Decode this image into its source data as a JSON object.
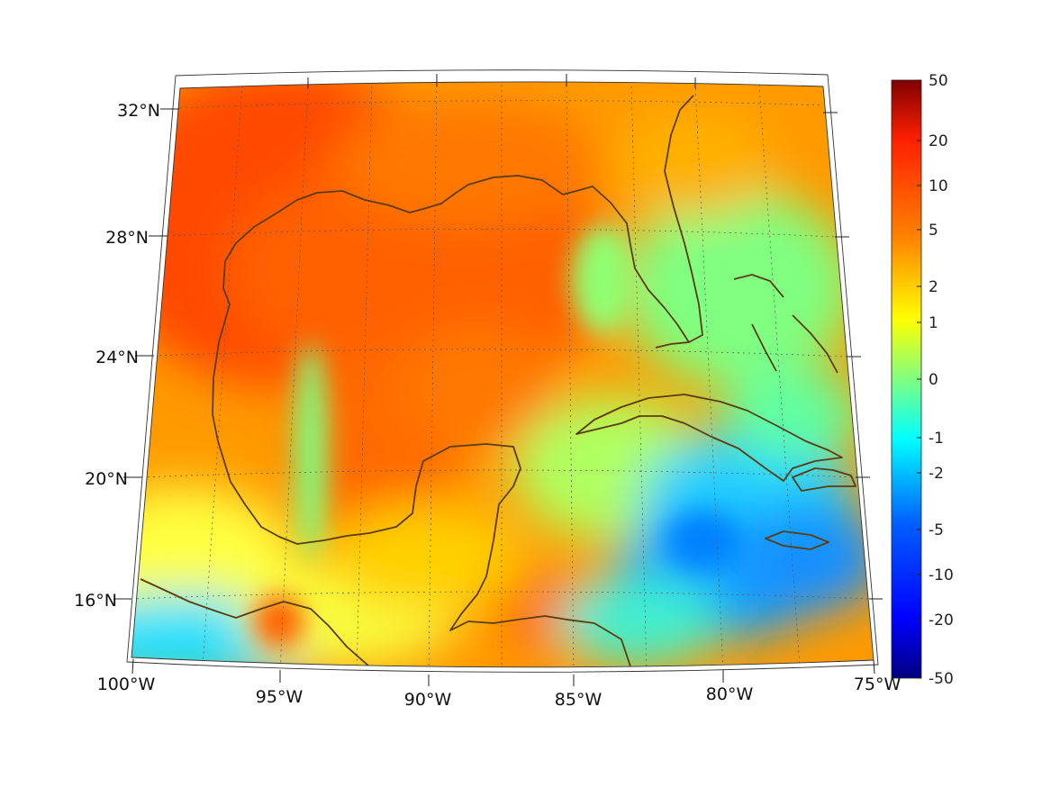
{
  "map": {
    "region": "Gulf of Mexico and Caribbean",
    "projection": "conic",
    "lon_labels": [
      "100°W",
      "95°W",
      "90°W",
      "85°W",
      "80°W",
      "75°W"
    ],
    "lat_labels": [
      "32°N",
      "28°N",
      "24°N",
      "20°N",
      "16°N"
    ],
    "coastline_color": "#5a3d14",
    "grid": true
  },
  "colorbar": {
    "colormap": "jet",
    "ticks": [
      "50",
      "20",
      "10",
      "5",
      "2",
      "1",
      "0",
      "-1",
      "-2",
      "-5",
      "-10",
      "-20",
      "-50"
    ],
    "colors": {
      "dark_red": "#800000",
      "red": "#ff2000",
      "orange": "#ff8000",
      "yellow": "#ffff00",
      "green": "#80ff80",
      "cyan": "#00ffff",
      "blue": "#0060ff",
      "dark_blue": "#000080"
    }
  }
}
